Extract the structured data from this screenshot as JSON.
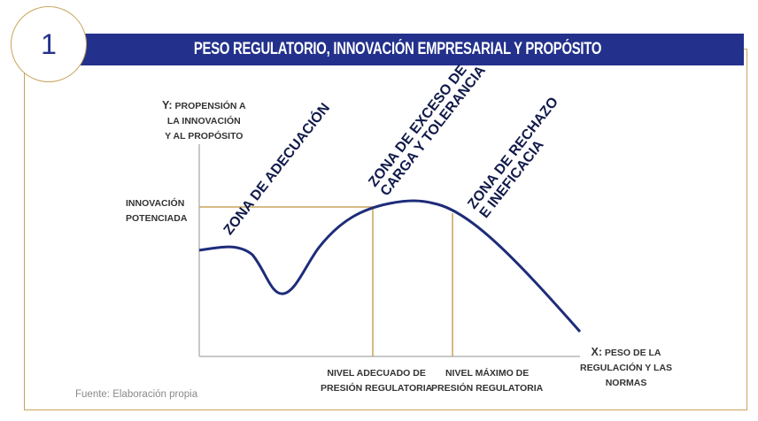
{
  "header": {
    "number": "1",
    "title": "PESO REGULATORIO, INNOVACIÓN EMPRESARIAL Y PROPÓSITO"
  },
  "diagram": {
    "y_axis": {
      "prefix": "Y:",
      "line1": "PROPENSIÓN A",
      "line2": "LA INNOVACIÓN",
      "line3": "Y AL PROPÓSITO"
    },
    "x_axis": {
      "prefix": "X:",
      "line1": "PESO DE LA",
      "line2": "REGULACIÓN Y LAS",
      "line3": "NORMAS"
    },
    "y_marker": {
      "line1": "INNOVACIÓN",
      "line2": "POTENCIADA"
    },
    "x_marker_adequate": {
      "line1": "NIVEL ADECUADO DE",
      "line2": "PRESIÓN REGULATORIA"
    },
    "x_marker_max": {
      "line1": "NIVEL MÁXIMO DE",
      "line2": "PRESIÓN REGULATORIA"
    },
    "zones": {
      "adecuacion": {
        "line1": "ZONA DE ADECUACIÓN"
      },
      "exceso": {
        "line1": "ZONA DE EXCESO DE",
        "line2": "CARGA Y TOLERANCIA"
      },
      "rechazo": {
        "line1": "ZONA DE RECHAZO",
        "line2": "E INEFICACIA"
      }
    }
  },
  "footer": {
    "source": "Fuente: Elaboración propia"
  },
  "colors": {
    "navy": "#23318c",
    "gold": "#c9a35a",
    "axis": "#c8c8c8",
    "curve": "#1e2c7a"
  }
}
